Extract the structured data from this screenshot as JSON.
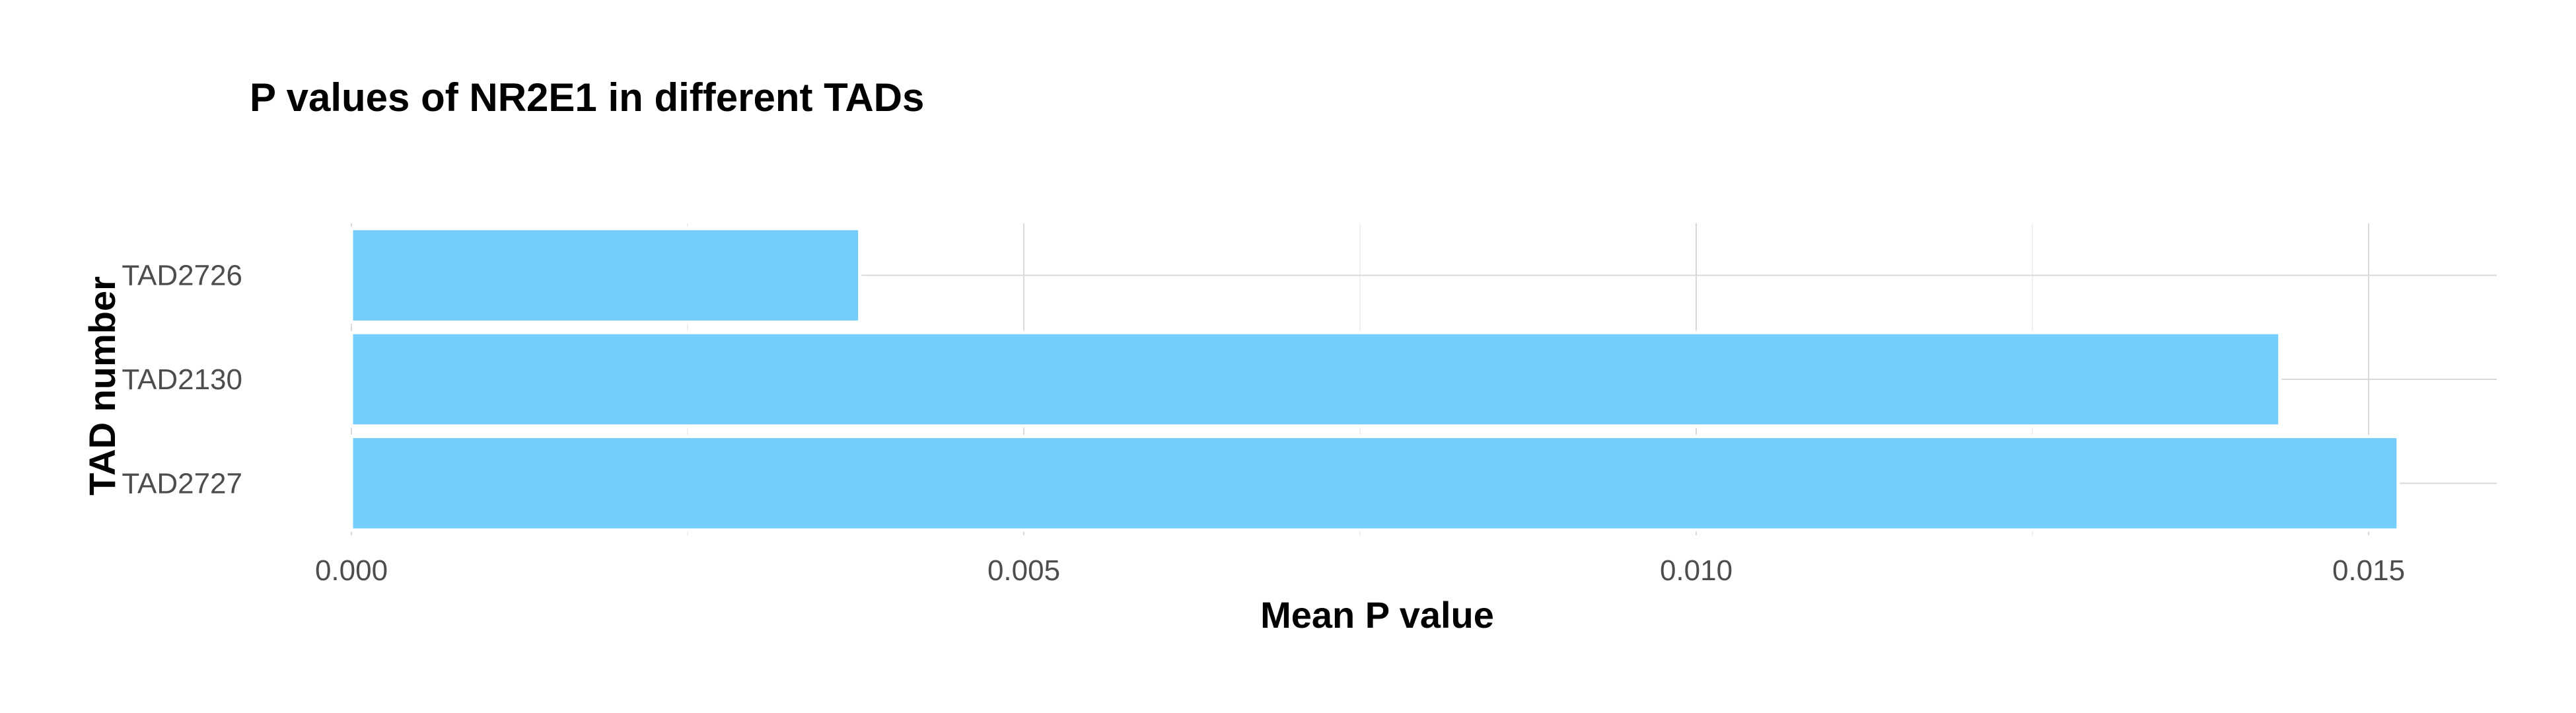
{
  "chart_data": {
    "type": "bar",
    "orientation": "horizontal",
    "title": "P values of NR2E1 in different TADs",
    "xlabel": "Mean P value",
    "ylabel": "TAD number",
    "categories": [
      "TAD2726",
      "TAD2130",
      "TAD2727"
    ],
    "values": [
      0.00378,
      0.01434,
      0.01522
    ],
    "xlim": [
      0,
      0.016
    ],
    "xticks": [
      0.0,
      0.005,
      0.01,
      0.015
    ],
    "xtick_labels": [
      "0.000",
      "0.005",
      "0.010",
      "0.015"
    ],
    "bar_color": "#75cdfb",
    "grid": true,
    "legend": "none"
  }
}
